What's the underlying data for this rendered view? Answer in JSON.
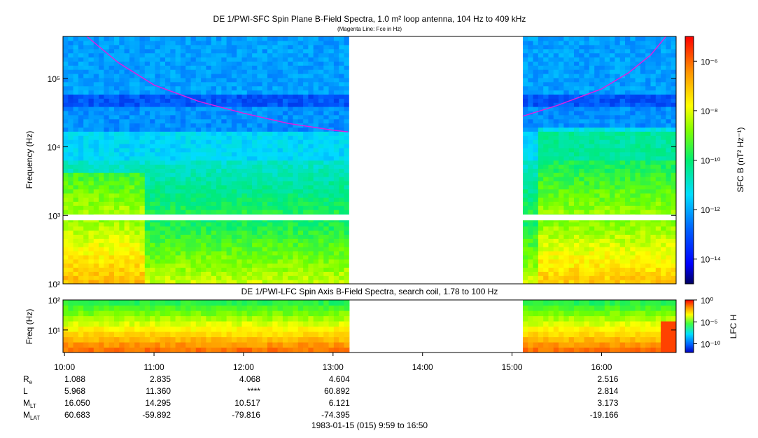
{
  "chart_data": [
    {
      "type": "heatmap",
      "title": "DE 1/PWI-SFC  Spin Plane B-Field Spectra, 1.0 m² loop antenna, 104 Hz to 409 kHz",
      "subtitle": "(Magenta Line: Fce in Hz)",
      "ylabel": "Frequency (Hz)",
      "yscale": "log",
      "ylim": [
        100,
        409000
      ],
      "yticks": [
        {
          "value": 100,
          "label": "10²"
        },
        {
          "value": 1000,
          "label": "10³"
        },
        {
          "value": 10000,
          "label": "10⁴"
        },
        {
          "value": 100000,
          "label": "10⁵"
        }
      ],
      "colorbar": {
        "label": "SFC B (nT² Hz⁻¹)",
        "scale": "log",
        "range": [
          1e-15,
          1e-05
        ],
        "ticks": [
          {
            "value": 1e-06,
            "label": "10⁻⁶"
          },
          {
            "value": 1e-08,
            "label": "10⁻⁸"
          },
          {
            "value": 1e-10,
            "label": "10⁻¹⁰"
          },
          {
            "value": 1e-12,
            "label": "10⁻¹²"
          },
          {
            "value": 1e-14,
            "label": "10⁻¹⁴"
          }
        ]
      },
      "data_gaps": [
        [
          13.18,
          15.12
        ]
      ],
      "series": [
        {
          "name": "Fce",
          "color": "#e020e0",
          "x": [
            10.25,
            10.6,
            11.0,
            11.5,
            12.0,
            12.5,
            13.0,
            13.17,
            15.12,
            15.5,
            16.0,
            16.3,
            16.55,
            16.72
          ],
          "y": [
            409000,
            170000,
            80000,
            46000,
            31000,
            22000,
            17500,
            16500,
            28000,
            40000,
            70000,
            120000,
            220000,
            409000
          ]
        }
      ]
    },
    {
      "type": "heatmap",
      "title": "DE 1/PWI-LFC  Spin Axis B-Field Spectra, search coil, 1.78 to 100 Hz",
      "ylabel": "Freq (Hz)",
      "yscale": "log",
      "ylim": [
        1.78,
        100
      ],
      "yticks": [
        {
          "value": 10,
          "label": "10¹"
        },
        {
          "value": 100,
          "label": "10²"
        }
      ],
      "colorbar": {
        "label": "LFC H",
        "scale": "log",
        "range": [
          1e-12,
          1
        ],
        "ticks": [
          {
            "value": 1,
            "label": "10⁰"
          },
          {
            "value": 1e-05,
            "label": "10⁻⁵"
          },
          {
            "value": 1e-10,
            "label": "10⁻¹⁰"
          }
        ]
      },
      "data_gaps": [
        [
          13.18,
          15.12
        ]
      ]
    }
  ],
  "time_axis": {
    "range": [
      9.983,
      16.833
    ],
    "ticks": [
      {
        "value": 10,
        "label": "10:00"
      },
      {
        "value": 11,
        "label": "11:00"
      },
      {
        "value": 12,
        "label": "12:00"
      },
      {
        "value": 13,
        "label": "13:00"
      },
      {
        "value": 14,
        "label": "14:00"
      },
      {
        "value": 15,
        "label": "15:00"
      },
      {
        "value": 16,
        "label": "16:00"
      }
    ],
    "footer": "1983-01-15 (015) 9:59 to 16:50"
  },
  "ephemeris": [
    {
      "label": "R",
      "sub": "e",
      "values": [
        "1.088",
        "2.835",
        "4.068",
        "4.604",
        "",
        "",
        "2.516"
      ]
    },
    {
      "label": "L",
      "sub": "",
      "values": [
        "5.968",
        "11.360",
        "****",
        "60.892",
        "",
        "",
        "2.814"
      ]
    },
    {
      "label": "M",
      "sub": "LT",
      "values": [
        "16.050",
        "14.295",
        "10.517",
        "6.121",
        "",
        "",
        "3.173"
      ]
    },
    {
      "label": "M",
      "sub": "LAT",
      "values": [
        "60.683",
        "-59.892",
        "-79.816",
        "-74.395",
        "",
        "",
        "-19.166"
      ]
    }
  ]
}
